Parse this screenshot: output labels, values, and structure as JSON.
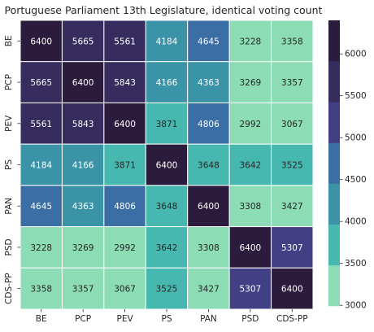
{
  "chart_data": {
    "type": "heatmap",
    "title": "Portuguese Parliament 13th Legislature, identical voting count",
    "xlabel": "",
    "ylabel": "",
    "categories_x": [
      "BE",
      "PCP",
      "PEV",
      "PS",
      "PAN",
      "PSD",
      "CDS-PP"
    ],
    "categories_y": [
      "BE",
      "PCP",
      "PEV",
      "PS",
      "PAN",
      "PSD",
      "CDS-PP"
    ],
    "values": [
      [
        6400,
        5665,
        5561,
        4184,
        4645,
        3228,
        3358
      ],
      [
        5665,
        6400,
        5843,
        4166,
        4363,
        3269,
        3357
      ],
      [
        5561,
        5843,
        6400,
        3871,
        4806,
        2992,
        3067
      ],
      [
        4184,
        4166,
        3871,
        6400,
        3648,
        3642,
        3525
      ],
      [
        4645,
        4363,
        4806,
        3648,
        6400,
        3308,
        3427
      ],
      [
        3228,
        3269,
        2992,
        3642,
        3308,
        6400,
        5307
      ],
      [
        3358,
        3357,
        3067,
        3525,
        3427,
        5307,
        6400
      ]
    ],
    "colorbar": {
      "range": [
        2992,
        6400
      ],
      "ticks": [
        3000,
        3500,
        4000,
        4500,
        5000,
        5500,
        6000
      ],
      "tick_labels": [
        "3000",
        "3500",
        "4000",
        "4500",
        "5000",
        "5500",
        "6000"
      ],
      "bins": [
        2992,
        3479,
        3966,
        4453,
        4939,
        5426,
        5913,
        6400
      ],
      "colors": [
        "#8cdcb6",
        "#47b8b0",
        "#3a93a6",
        "#3b6ea4",
        "#433f85",
        "#362c5e",
        "#2b1c3d"
      ]
    },
    "annotation_text_colors": {
      "on_dark": "#ffffff",
      "on_light": "#262626"
    },
    "grid_line_color": "#ffffff"
  }
}
